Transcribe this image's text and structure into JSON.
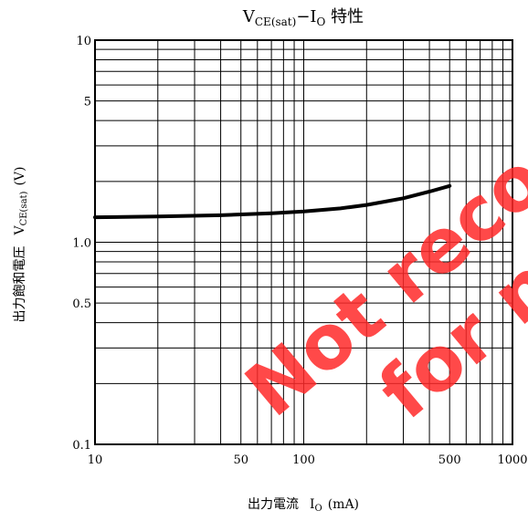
{
  "chart_data": {
    "type": "line",
    "title_parts": {
      "v": "V",
      "sub": "CE(sat)",
      "dash": "−I",
      "sub2": "O",
      "tail": " 特性"
    },
    "xlabel": {
      "main": "出力電流",
      "sym": "I",
      "sub": "O",
      "unit": "(mA)"
    },
    "ylabel": {
      "main": "出力飽和電圧",
      "sym": "V",
      "sub": "CE(sat)",
      "unit": "(V)"
    },
    "x_scale": "log",
    "y_scale": "log",
    "xlim": [
      10,
      1000
    ],
    "ylim": [
      0.1,
      10
    ],
    "x_tick_labels": [
      {
        "value": 10,
        "label": "10"
      },
      {
        "value": 50,
        "label": "50"
      },
      {
        "value": 100,
        "label": "100"
      },
      {
        "value": 500,
        "label": "500"
      },
      {
        "value": 1000,
        "label": "1000"
      }
    ],
    "y_tick_labels": [
      {
        "value": 10,
        "label": "10"
      },
      {
        "value": 5,
        "label": "5"
      },
      {
        "value": 1,
        "label": "1.0"
      },
      {
        "value": 0.5,
        "label": "0.5"
      },
      {
        "value": 0.1,
        "label": "0.1"
      }
    ],
    "grid": true,
    "series": [
      {
        "x": [
          10,
          20,
          40,
          70,
          100,
          150,
          200,
          300,
          400,
          500
        ],
        "values": [
          1.33,
          1.34,
          1.36,
          1.39,
          1.42,
          1.47,
          1.53,
          1.65,
          1.78,
          1.9
        ]
      }
    ]
  },
  "watermark": {
    "line1": "Not reco",
    "line2": "for ne"
  }
}
